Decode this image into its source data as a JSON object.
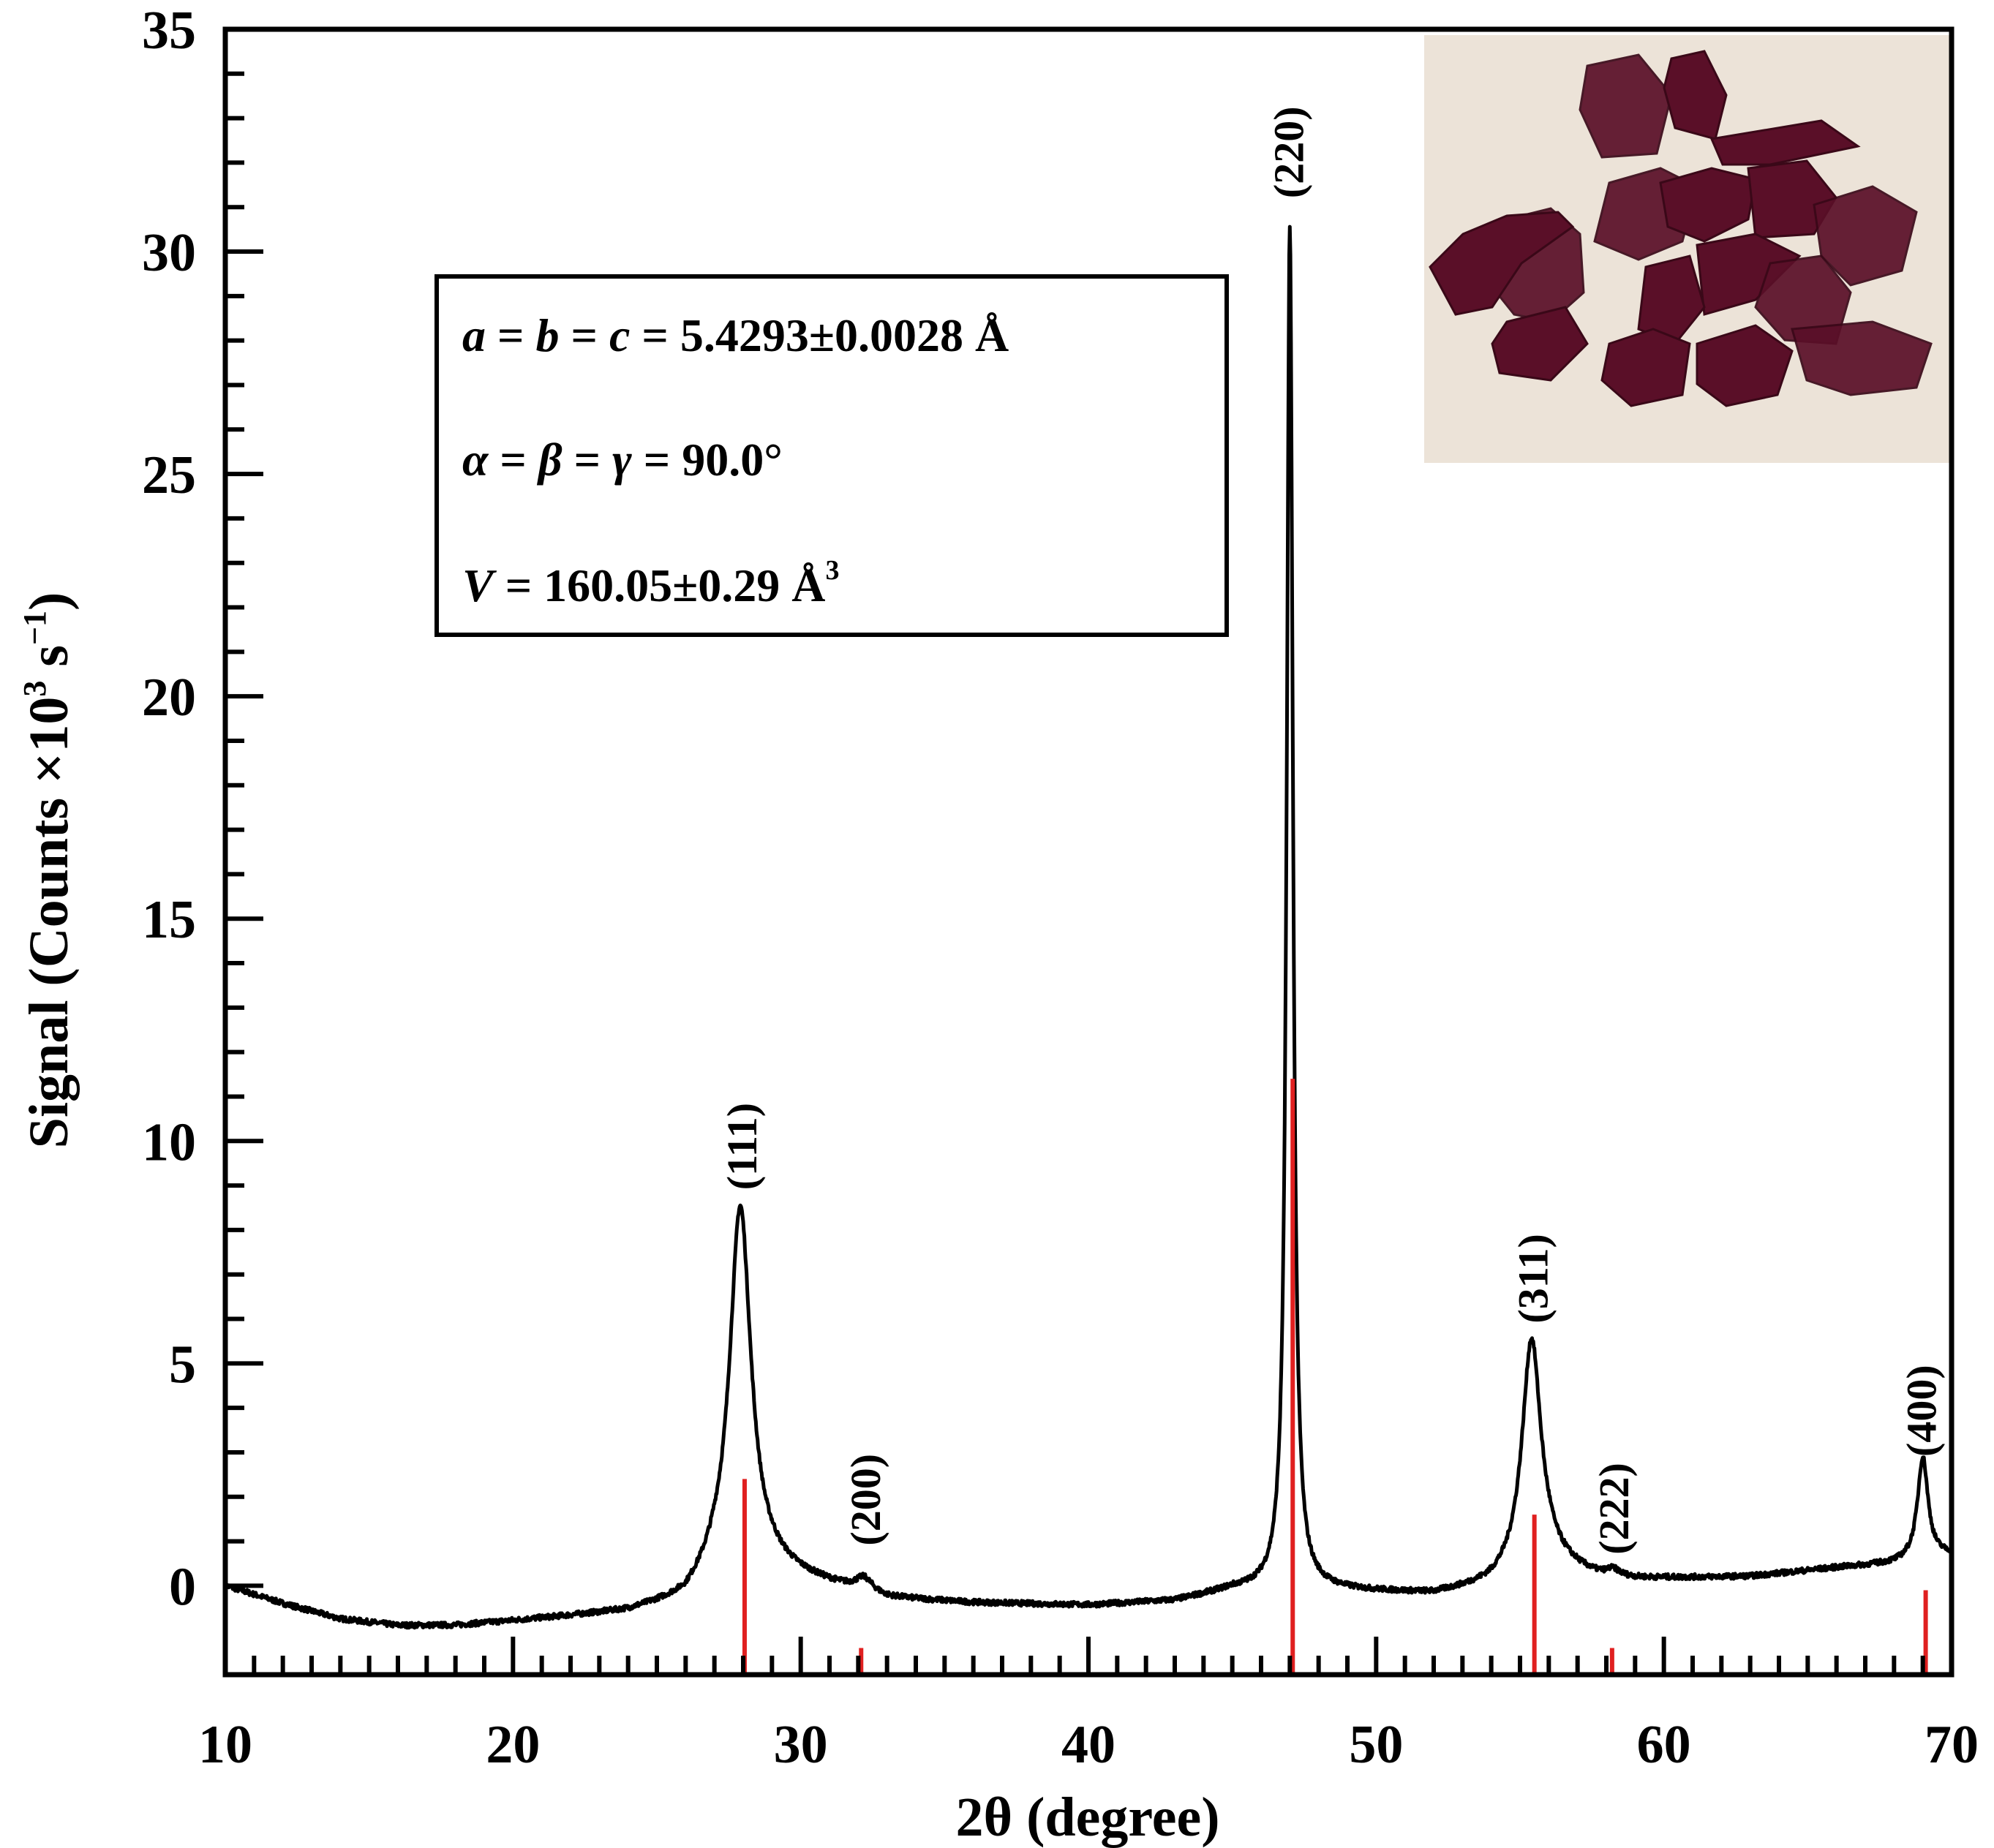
{
  "chart_data": {
    "type": "line",
    "xlabel": "2θ (degree)",
    "ylabel": "Signal (Counts ×10³ s⁻¹)",
    "ylabel_parts": {
      "main": "Signal (Counts ×10",
      "exp1": "3",
      "mid": " s",
      "exp2": "−1",
      "end": ")"
    },
    "xlim": [
      10,
      70
    ],
    "ylim": [
      -2,
      35
    ],
    "x_ticks": [
      "10",
      "20",
      "30",
      "40",
      "50",
      "60",
      "70"
    ],
    "y_ticks": [
      "0",
      "5",
      "10",
      "15",
      "20",
      "25",
      "30",
      "35"
    ],
    "x_tick_values": [
      10,
      20,
      30,
      40,
      50,
      60,
      70
    ],
    "y_tick_values": [
      0,
      5,
      10,
      15,
      20,
      25,
      30,
      35
    ],
    "grid": false,
    "series": [
      {
        "kind": "measured",
        "color": "#000000",
        "baseline": [
          [
            10,
            0
          ],
          [
            12,
            -0.4
          ],
          [
            14,
            -0.75
          ],
          [
            16,
            -0.9
          ],
          [
            18,
            -0.9
          ],
          [
            20,
            -0.8
          ],
          [
            22,
            -0.7
          ],
          [
            24,
            -0.6
          ],
          [
            26,
            -0.35
          ],
          [
            27,
            0.2
          ],
          [
            29,
            0.3
          ],
          [
            31,
            0.0
          ],
          [
            33,
            -0.3
          ],
          [
            36,
            -0.4
          ],
          [
            40,
            -0.45
          ],
          [
            43,
            -0.35
          ],
          [
            45,
            -0.1
          ],
          [
            48,
            -0.1
          ],
          [
            52,
            -0.2
          ],
          [
            54,
            0.0
          ],
          [
            56,
            0.5
          ],
          [
            58,
            0.1
          ],
          [
            60,
            0.15
          ],
          [
            63,
            0.2
          ],
          [
            66,
            0.4
          ],
          [
            68,
            0.5
          ],
          [
            70,
            0.7
          ]
        ],
        "peaks": [
          {
            "x": 27.9,
            "height": 8.3,
            "width": 0.45
          },
          {
            "x": 32.2,
            "height": 0.3,
            "width": 0.35
          },
          {
            "x": 47.0,
            "height": 30.7,
            "width": 0.13
          },
          {
            "x": 55.4,
            "height": 5.2,
            "width": 0.4
          },
          {
            "x": 58.2,
            "height": 0.2,
            "width": 0.35
          },
          {
            "x": 69.0,
            "height": 2.3,
            "width": 0.22
          }
        ]
      },
      {
        "kind": "reference",
        "color": "#e02020",
        "sticks": [
          {
            "x": 28.05,
            "y": 2.4
          },
          {
            "x": 32.1,
            "y": -1.4
          },
          {
            "x": 47.1,
            "y": 11.4
          },
          {
            "x": 55.5,
            "y": 1.6
          },
          {
            "x": 58.2,
            "y": -1.4
          },
          {
            "x": 69.1,
            "y": -0.1
          }
        ]
      }
    ],
    "annotations": [
      {
        "text": "(111)",
        "x": 28.0,
        "y": 8.9
      },
      {
        "text": "(200)",
        "x": 32.3,
        "y": 0.9
      },
      {
        "text": "(220)",
        "x": 47.0,
        "y": 31.2
      },
      {
        "text": "(311)",
        "x": 55.5,
        "y": 5.9
      },
      {
        "text": "(222)",
        "x": 58.3,
        "y": 0.7
      },
      {
        "text": "(400)",
        "x": 69.0,
        "y": 2.9
      }
    ],
    "info_box": {
      "line1": {
        "a": "a",
        "eq1": " = ",
        "b": "b",
        "eq2": " = ",
        "c": "c",
        "rest": " = 5.4293±0.0028 Å"
      },
      "line2": {
        "alpha": "α",
        "eq1": " = ",
        "beta": "β",
        "eq2": " = ",
        "gamma": "γ",
        "rest": " = 90.0°"
      },
      "line3": {
        "v": "V",
        "rest": " = 160.05±0.29 Å",
        "sup": "3"
      }
    },
    "inset": {
      "kind": "photo",
      "subject": "dark red crystal fragments",
      "background_color": "#ece3d8",
      "crystal_color": "#5a0f28"
    }
  }
}
